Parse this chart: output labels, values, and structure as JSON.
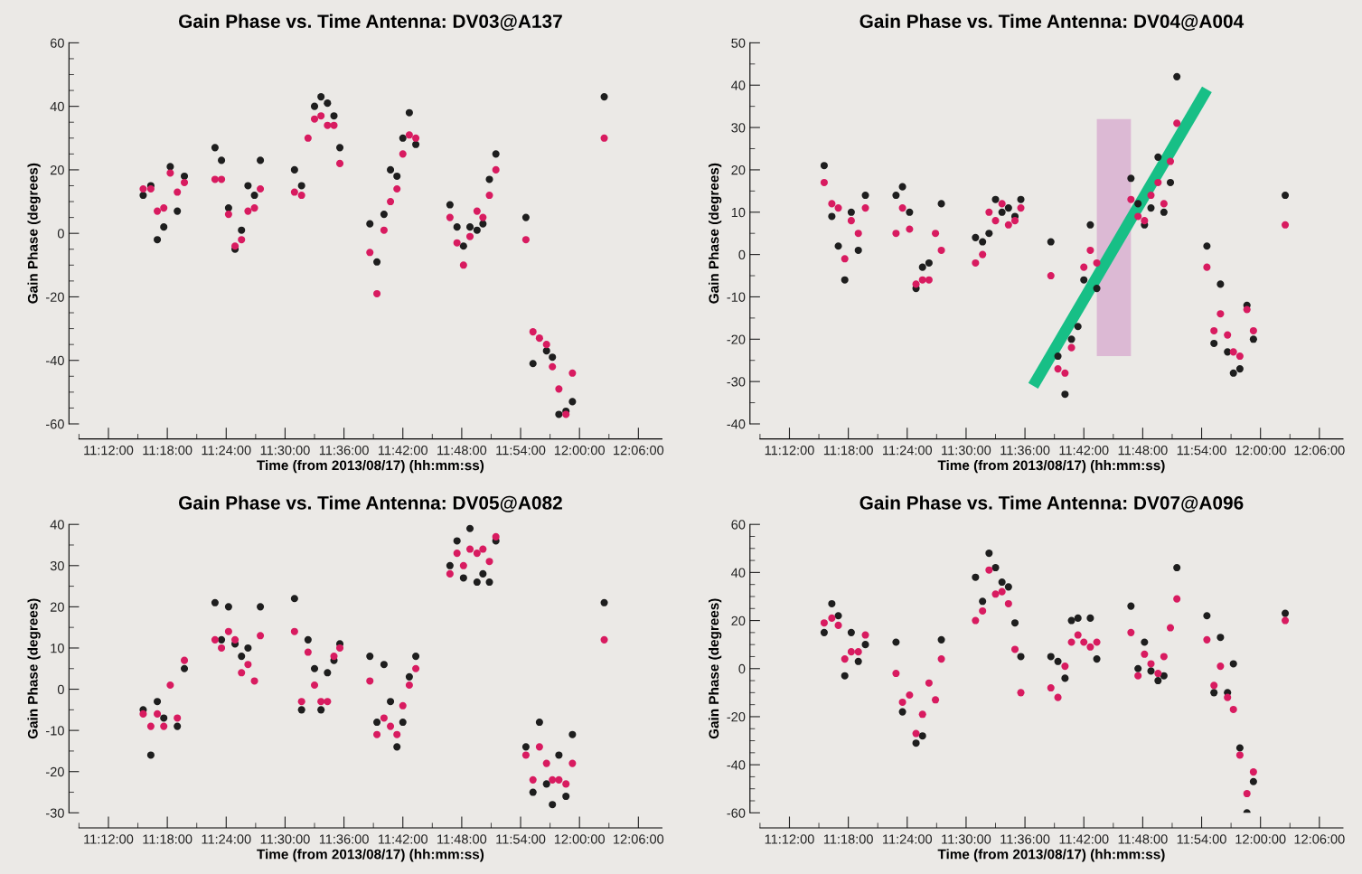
{
  "chart_data": [
    {
      "type": "scatter",
      "title": "Gain Phase vs. Time Antenna: DV03@A137",
      "xlabel": "Time (from 2013/08/17) (hh:mm:ss)",
      "ylabel": "Gain Phase (degrees)",
      "marker": "circle",
      "x": [
        11.259,
        11.272,
        11.283,
        11.294,
        11.305,
        11.317,
        11.329,
        11.381,
        11.392,
        11.404,
        11.415,
        11.426,
        11.437,
        11.448,
        11.458,
        11.516,
        11.528,
        11.539,
        11.55,
        11.561,
        11.572,
        11.583,
        11.593,
        11.644,
        11.656,
        11.668,
        11.679,
        11.69,
        11.7,
        11.711,
        11.722,
        11.78,
        11.792,
        11.803,
        11.814,
        11.826,
        11.836,
        11.847,
        11.858,
        11.909,
        11.921,
        11.932,
        11.944,
        11.954,
        11.965,
        11.977,
        11.988,
        12.042
      ],
      "xlim": [
        11.15,
        12.14
      ],
      "xticks": [
        {
          "value": 11.15,
          "label": null
        },
        {
          "value": 11.2,
          "label": "11:12:00"
        },
        {
          "value": 11.25,
          "label": null
        },
        {
          "value": 11.3,
          "label": "11:18:00"
        },
        {
          "value": 11.35,
          "label": null
        },
        {
          "value": 11.4,
          "label": "11:24:00"
        },
        {
          "value": 11.45,
          "label": null
        },
        {
          "value": 11.5,
          "label": "11:30:00"
        },
        {
          "value": 11.55,
          "label": null
        },
        {
          "value": 11.6,
          "label": "11:36:00"
        },
        {
          "value": 11.65,
          "label": null
        },
        {
          "value": 11.7,
          "label": "11:42:00"
        },
        {
          "value": 11.75,
          "label": null
        },
        {
          "value": 11.8,
          "label": "11:48:00"
        },
        {
          "value": 11.85,
          "label": null
        },
        {
          "value": 11.9,
          "label": "11:54:00"
        },
        {
          "value": 11.95,
          "label": null
        },
        {
          "value": 12.0,
          "label": "12:00:00"
        },
        {
          "value": 12.05,
          "label": null
        },
        {
          "value": 12.1,
          "label": "12:06:00"
        }
      ],
      "ylim": [
        -60,
        60
      ],
      "yticks": [
        -60,
        {
          "value": -55,
          "label": null
        },
        {
          "value": -50,
          "label": null
        },
        {
          "value": -45,
          "label": null
        },
        -40,
        {
          "value": -35,
          "label": null
        },
        {
          "value": -30,
          "label": null
        },
        {
          "value": -25,
          "label": null
        },
        -20,
        {
          "value": -15,
          "label": null
        },
        {
          "value": -10,
          "label": null
        },
        {
          "value": -5,
          "label": null
        },
        0,
        {
          "value": 5,
          "label": null
        },
        {
          "value": 10,
          "label": null
        },
        {
          "value": 15,
          "label": null
        },
        20,
        {
          "value": 25,
          "label": null
        },
        {
          "value": 30,
          "label": null
        },
        {
          "value": 35,
          "label": null
        },
        40,
        {
          "value": 45,
          "label": null
        },
        {
          "value": 50,
          "label": null
        },
        {
          "value": 55,
          "label": null
        },
        60
      ],
      "series": [
        {
          "color": "#1e1e1e",
          "values": [
            12,
            15,
            -2,
            2,
            21,
            7,
            18,
            27,
            23,
            8,
            -5,
            1,
            15,
            12,
            23,
            20,
            15,
            null,
            40,
            43,
            41,
            37,
            27,
            3,
            -9,
            6,
            20,
            18,
            30,
            38,
            28,
            9,
            2,
            -4,
            2,
            1,
            3,
            17,
            25,
            5,
            -41,
            null,
            -37,
            -39,
            -57,
            -56,
            -53,
            43
          ]
        },
        {
          "color": "#d81b60",
          "values": [
            14,
            14,
            7,
            8,
            19,
            13,
            16,
            17,
            17,
            6,
            -4,
            -2,
            7,
            8,
            14,
            13,
            12,
            30,
            36,
            37,
            34,
            34,
            22,
            -6,
            -19,
            1,
            10,
            14,
            25,
            31,
            30,
            5,
            -3,
            -10,
            -1,
            7,
            5,
            12,
            20,
            -2,
            -31,
            -33,
            -35,
            -42,
            -49,
            -57,
            -44,
            30
          ]
        }
      ]
    },
    {
      "type": "scatter",
      "title": "Gain Phase vs. Time Antenna: DV04@A004",
      "xlabel": "Time (from 2013/08/17) (hh:mm:ss)",
      "ylabel": "Gain Phase (degrees)",
      "marker": "circle",
      "x": [
        11.259,
        11.272,
        11.283,
        11.294,
        11.305,
        11.317,
        11.329,
        11.381,
        11.392,
        11.404,
        11.415,
        11.426,
        11.437,
        11.448,
        11.458,
        11.516,
        11.528,
        11.539,
        11.55,
        11.561,
        11.572,
        11.583,
        11.593,
        11.644,
        11.656,
        11.668,
        11.679,
        11.69,
        11.7,
        11.711,
        11.722,
        11.78,
        11.792,
        11.803,
        11.814,
        11.826,
        11.836,
        11.847,
        11.858,
        11.909,
        11.921,
        11.932,
        11.944,
        11.954,
        11.965,
        11.977,
        11.988,
        12.042
      ],
      "xlim": [
        11.15,
        12.14
      ],
      "xticks": [
        {
          "value": 11.15,
          "label": null
        },
        {
          "value": 11.2,
          "label": "11:12:00"
        },
        {
          "value": 11.25,
          "label": null
        },
        {
          "value": 11.3,
          "label": "11:18:00"
        },
        {
          "value": 11.35,
          "label": null
        },
        {
          "value": 11.4,
          "label": "11:24:00"
        },
        {
          "value": 11.45,
          "label": null
        },
        {
          "value": 11.5,
          "label": "11:30:00"
        },
        {
          "value": 11.55,
          "label": null
        },
        {
          "value": 11.6,
          "label": "11:36:00"
        },
        {
          "value": 11.65,
          "label": null
        },
        {
          "value": 11.7,
          "label": "11:42:00"
        },
        {
          "value": 11.75,
          "label": null
        },
        {
          "value": 11.8,
          "label": "11:48:00"
        },
        {
          "value": 11.85,
          "label": null
        },
        {
          "value": 11.9,
          "label": "11:54:00"
        },
        {
          "value": 11.95,
          "label": null
        },
        {
          "value": 12.0,
          "label": "12:00:00"
        },
        {
          "value": 12.05,
          "label": null
        },
        {
          "value": 12.1,
          "label": "12:06:00"
        }
      ],
      "ylim": [
        -40,
        50
      ],
      "yticks": [
        -40,
        {
          "value": -35,
          "label": null
        },
        -30,
        {
          "value": -25,
          "label": null
        },
        -20,
        {
          "value": -15,
          "label": null
        },
        -10,
        {
          "value": -5,
          "label": null
        },
        0,
        {
          "value": 5,
          "label": null
        },
        10,
        {
          "value": 15,
          "label": null
        },
        20,
        {
          "value": 25,
          "label": null
        },
        30,
        {
          "value": 35,
          "label": null
        },
        40,
        {
          "value": 45,
          "label": null
        },
        50
      ],
      "series": [
        {
          "type": "bar",
          "color": "#dcb9d4",
          "x": [
            11.751
          ],
          "base": [
            -24
          ],
          "values": [
            56
          ]
        },
        {
          "type": "line",
          "marker": "none",
          "color": "#17bf86",
          "x": [
            11.614,
            11.909
          ],
          "values": [
            -31,
            39
          ]
        },
        {
          "color": "#1e1e1e",
          "values": [
            21,
            9,
            2,
            -6,
            10,
            1,
            14,
            14,
            16,
            10,
            -8,
            -3,
            -2,
            null,
            12,
            4,
            3,
            5,
            13,
            10,
            11,
            9,
            13,
            3,
            -24,
            -33,
            -20,
            -17,
            -6,
            7,
            -8,
            18,
            12,
            7,
            11,
            23,
            10,
            17,
            42,
            2,
            -21,
            -7,
            -23,
            -28,
            -27,
            -12,
            -20,
            14
          ]
        },
        {
          "color": "#d81b60",
          "values": [
            17,
            12,
            11,
            -1,
            8,
            5,
            11,
            5,
            11,
            6,
            -7,
            -6,
            -6,
            5,
            1,
            -2,
            0,
            10,
            8,
            12,
            7,
            8,
            11,
            -5,
            -27,
            -28,
            -22,
            null,
            -3,
            1,
            -2,
            13,
            9,
            8,
            14,
            17,
            12,
            22,
            31,
            -3,
            -18,
            -14,
            -19,
            -23,
            -24,
            -13,
            -18,
            7
          ]
        }
      ]
    },
    {
      "type": "scatter",
      "title": "Gain Phase vs. Time Antenna: DV05@A082",
      "xlabel": "Time (from 2013/08/17) (hh:mm:ss)",
      "ylabel": "Gain Phase (degrees)",
      "marker": "circle",
      "x": [
        11.259,
        11.272,
        11.283,
        11.294,
        11.305,
        11.317,
        11.329,
        11.381,
        11.392,
        11.404,
        11.415,
        11.426,
        11.437,
        11.448,
        11.458,
        11.516,
        11.528,
        11.539,
        11.55,
        11.561,
        11.572,
        11.583,
        11.593,
        11.644,
        11.656,
        11.668,
        11.679,
        11.69,
        11.7,
        11.711,
        11.722,
        11.78,
        11.792,
        11.803,
        11.814,
        11.826,
        11.836,
        11.847,
        11.858,
        11.909,
        11.921,
        11.932,
        11.944,
        11.954,
        11.965,
        11.977,
        11.988,
        12.042
      ],
      "xlim": [
        11.15,
        12.14
      ],
      "xticks": [
        {
          "value": 11.15,
          "label": null
        },
        {
          "value": 11.2,
          "label": "11:12:00"
        },
        {
          "value": 11.25,
          "label": null
        },
        {
          "value": 11.3,
          "label": "11:18:00"
        },
        {
          "value": 11.35,
          "label": null
        },
        {
          "value": 11.4,
          "label": "11:24:00"
        },
        {
          "value": 11.45,
          "label": null
        },
        {
          "value": 11.5,
          "label": "11:30:00"
        },
        {
          "value": 11.55,
          "label": null
        },
        {
          "value": 11.6,
          "label": "11:36:00"
        },
        {
          "value": 11.65,
          "label": null
        },
        {
          "value": 11.7,
          "label": "11:42:00"
        },
        {
          "value": 11.75,
          "label": null
        },
        {
          "value": 11.8,
          "label": "11:48:00"
        },
        {
          "value": 11.85,
          "label": null
        },
        {
          "value": 11.9,
          "label": "11:54:00"
        },
        {
          "value": 11.95,
          "label": null
        },
        {
          "value": 12.0,
          "label": "12:00:00"
        },
        {
          "value": 12.05,
          "label": null
        },
        {
          "value": 12.1,
          "label": "12:06:00"
        }
      ],
      "ylim": [
        -30,
        40
      ],
      "yticks": [
        -30,
        {
          "value": -25,
          "label": null
        },
        -20,
        {
          "value": -15,
          "label": null
        },
        -10,
        {
          "value": -5,
          "label": null
        },
        0,
        {
          "value": 5,
          "label": null
        },
        10,
        {
          "value": 15,
          "label": null
        },
        20,
        {
          "value": 25,
          "label": null
        },
        30,
        {
          "value": 35,
          "label": null
        },
        40
      ],
      "series": [
        {
          "color": "#1e1e1e",
          "values": [
            -5,
            -16,
            -3,
            -7,
            null,
            -9,
            5,
            21,
            12,
            20,
            11,
            8,
            10,
            null,
            20,
            22,
            -5,
            12,
            5,
            -5,
            4,
            7,
            11,
            8,
            -8,
            6,
            -3,
            -14,
            -8,
            3,
            8,
            30,
            36,
            27,
            39,
            26,
            28,
            26,
            36,
            -14,
            -25,
            -8,
            -23,
            -28,
            -16,
            -26,
            -11,
            21
          ]
        },
        {
          "color": "#d81b60",
          "values": [
            -6,
            -9,
            -6,
            -9,
            1,
            -7,
            7,
            12,
            10,
            14,
            12,
            4,
            6,
            2,
            13,
            14,
            -3,
            9,
            1,
            -3,
            -3,
            8,
            10,
            2,
            -11,
            -7,
            -9,
            -11,
            -4,
            1,
            5,
            28,
            33,
            30,
            34,
            33,
            34,
            31,
            37,
            -16,
            -22,
            -14,
            -18,
            -22,
            -22,
            -23,
            -18,
            12
          ]
        }
      ]
    },
    {
      "type": "scatter",
      "title": "Gain Phase vs. Time Antenna: DV07@A096",
      "xlabel": "Time (from 2013/08/17) (hh:mm:ss)",
      "ylabel": "Gain Phase (degrees)",
      "marker": "circle",
      "x": [
        11.259,
        11.272,
        11.283,
        11.294,
        11.305,
        11.317,
        11.329,
        11.381,
        11.392,
        11.404,
        11.415,
        11.426,
        11.437,
        11.448,
        11.458,
        11.516,
        11.528,
        11.539,
        11.55,
        11.561,
        11.572,
        11.583,
        11.593,
        11.644,
        11.656,
        11.668,
        11.679,
        11.69,
        11.7,
        11.711,
        11.722,
        11.78,
        11.792,
        11.803,
        11.814,
        11.826,
        11.836,
        11.847,
        11.858,
        11.909,
        11.921,
        11.932,
        11.944,
        11.954,
        11.965,
        11.977,
        11.988,
        12.042
      ],
      "xlim": [
        11.15,
        12.14
      ],
      "xticks": [
        {
          "value": 11.15,
          "label": null
        },
        {
          "value": 11.2,
          "label": "11:12:00"
        },
        {
          "value": 11.25,
          "label": null
        },
        {
          "value": 11.3,
          "label": "11:18:00"
        },
        {
          "value": 11.35,
          "label": null
        },
        {
          "value": 11.4,
          "label": "11:24:00"
        },
        {
          "value": 11.45,
          "label": null
        },
        {
          "value": 11.5,
          "label": "11:30:00"
        },
        {
          "value": 11.55,
          "label": null
        },
        {
          "value": 11.6,
          "label": "11:36:00"
        },
        {
          "value": 11.65,
          "label": null
        },
        {
          "value": 11.7,
          "label": "11:42:00"
        },
        {
          "value": 11.75,
          "label": null
        },
        {
          "value": 11.8,
          "label": "11:48:00"
        },
        {
          "value": 11.85,
          "label": null
        },
        {
          "value": 11.9,
          "label": "11:54:00"
        },
        {
          "value": 11.95,
          "label": null
        },
        {
          "value": 12.0,
          "label": "12:00:00"
        },
        {
          "value": 12.05,
          "label": null
        },
        {
          "value": 12.1,
          "label": "12:06:00"
        }
      ],
      "ylim": [
        -60,
        60
      ],
      "yticks": [
        -60,
        {
          "value": -55,
          "label": null
        },
        {
          "value": -50,
          "label": null
        },
        {
          "value": -45,
          "label": null
        },
        -40,
        {
          "value": -35,
          "label": null
        },
        {
          "value": -30,
          "label": null
        },
        {
          "value": -25,
          "label": null
        },
        -20,
        {
          "value": -15,
          "label": null
        },
        {
          "value": -10,
          "label": null
        },
        {
          "value": -5,
          "label": null
        },
        0,
        {
          "value": 5,
          "label": null
        },
        {
          "value": 10,
          "label": null
        },
        {
          "value": 15,
          "label": null
        },
        20,
        {
          "value": 25,
          "label": null
        },
        {
          "value": 30,
          "label": null
        },
        {
          "value": 35,
          "label": null
        },
        40,
        {
          "value": 45,
          "label": null
        },
        {
          "value": 50,
          "label": null
        },
        {
          "value": 55,
          "label": null
        },
        60
      ],
      "series": [
        {
          "color": "#1e1e1e",
          "values": [
            15,
            27,
            22,
            -3,
            15,
            3,
            10,
            11,
            -18,
            null,
            -31,
            -28,
            null,
            null,
            12,
            38,
            28,
            48,
            42,
            36,
            34,
            19,
            5,
            5,
            3,
            -4,
            20,
            21,
            null,
            21,
            4,
            26,
            0,
            11,
            -1,
            -5,
            -3,
            null,
            42,
            22,
            -10,
            13,
            -10,
            2,
            -33,
            -60,
            -47,
            23
          ]
        },
        {
          "color": "#d81b60",
          "values": [
            19,
            21,
            18,
            4,
            7,
            7,
            14,
            -2,
            -14,
            -11,
            -27,
            -19,
            -6,
            -13,
            4,
            20,
            24,
            41,
            31,
            32,
            27,
            8,
            -10,
            -8,
            -12,
            1,
            11,
            14,
            11,
            9,
            11,
            15,
            -3,
            6,
            2,
            -2,
            5,
            17,
            29,
            12,
            -7,
            1,
            -12,
            -17,
            -36,
            -52,
            -43,
            20
          ]
        }
      ]
    }
  ]
}
